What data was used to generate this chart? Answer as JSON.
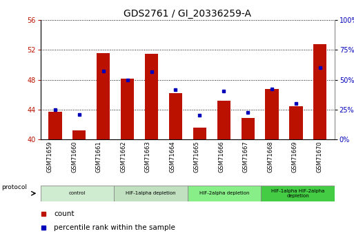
{
  "title": "GDS2761 / GI_20336259-A",
  "samples": [
    "GSM71659",
    "GSM71660",
    "GSM71661",
    "GSM71662",
    "GSM71663",
    "GSM71664",
    "GSM71665",
    "GSM71666",
    "GSM71667",
    "GSM71668",
    "GSM71669",
    "GSM71670"
  ],
  "count_values": [
    43.7,
    41.2,
    51.6,
    48.1,
    51.5,
    46.2,
    41.6,
    45.2,
    42.9,
    46.8,
    44.4,
    52.8
  ],
  "percentile_values": [
    25.0,
    20.5,
    57.5,
    50.0,
    57.0,
    41.5,
    20.0,
    40.5,
    22.5,
    42.0,
    30.0,
    60.0
  ],
  "ylim_left": [
    40,
    56
  ],
  "ylim_right": [
    0,
    100
  ],
  "yticks_left": [
    40,
    44,
    48,
    52,
    56
  ],
  "yticks_right": [
    0,
    25,
    50,
    75,
    100
  ],
  "bar_color": "#bb1100",
  "dot_color": "#0000bb",
  "background_color": "#ffffff",
  "grid_color": "#000000",
  "protocol_groups": [
    {
      "label": "control",
      "start": 0,
      "end": 2,
      "color": "#d0ecd0"
    },
    {
      "label": "HIF-1alpha depletion",
      "start": 3,
      "end": 5,
      "color": "#c0e0c0"
    },
    {
      "label": "HIF-2alpha depletion",
      "start": 6,
      "end": 8,
      "color": "#88ee88"
    },
    {
      "label": "HIF-1alpha HIF-2alpha\ndepletion",
      "start": 9,
      "end": 11,
      "color": "#44cc44"
    }
  ],
  "legend_count_label": "count",
  "legend_pct_label": "percentile rank within the sample",
  "title_fontsize": 10,
  "tick_fontsize": 7,
  "label_fontsize": 6
}
